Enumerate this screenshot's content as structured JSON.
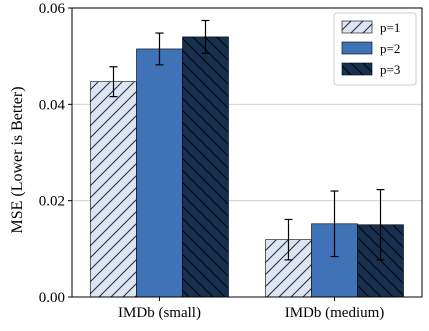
{
  "chart_data": {
    "type": "bar",
    "categories": [
      "IMDb (small)",
      "IMDb (medium)"
    ],
    "series": [
      {
        "name": "p=1",
        "values": [
          0.0447,
          0.0119
        ],
        "errors": [
          0.0031,
          0.0042
        ],
        "color": "#dde4f2",
        "hatch": "diag-up"
      },
      {
        "name": "p=2",
        "values": [
          0.0515,
          0.0152
        ],
        "errors": [
          0.0033,
          0.0068
        ],
        "color": "#3f72b6",
        "hatch": "none"
      },
      {
        "name": "p=3",
        "values": [
          0.054,
          0.015
        ],
        "errors": [
          0.0034,
          0.0073
        ],
        "color": "#17304f",
        "hatch": "diag-down"
      }
    ],
    "xlabel": "",
    "ylabel": "MSE (Lower is Better)",
    "ylim": [
      0,
      0.06
    ],
    "yticks": [
      "0.00",
      "0.02",
      "0.04",
      "0.06"
    ],
    "ytick_values": [
      0,
      0.02,
      0.04,
      0.06
    ],
    "grid": "horizontal",
    "legend_position": "top-right"
  }
}
